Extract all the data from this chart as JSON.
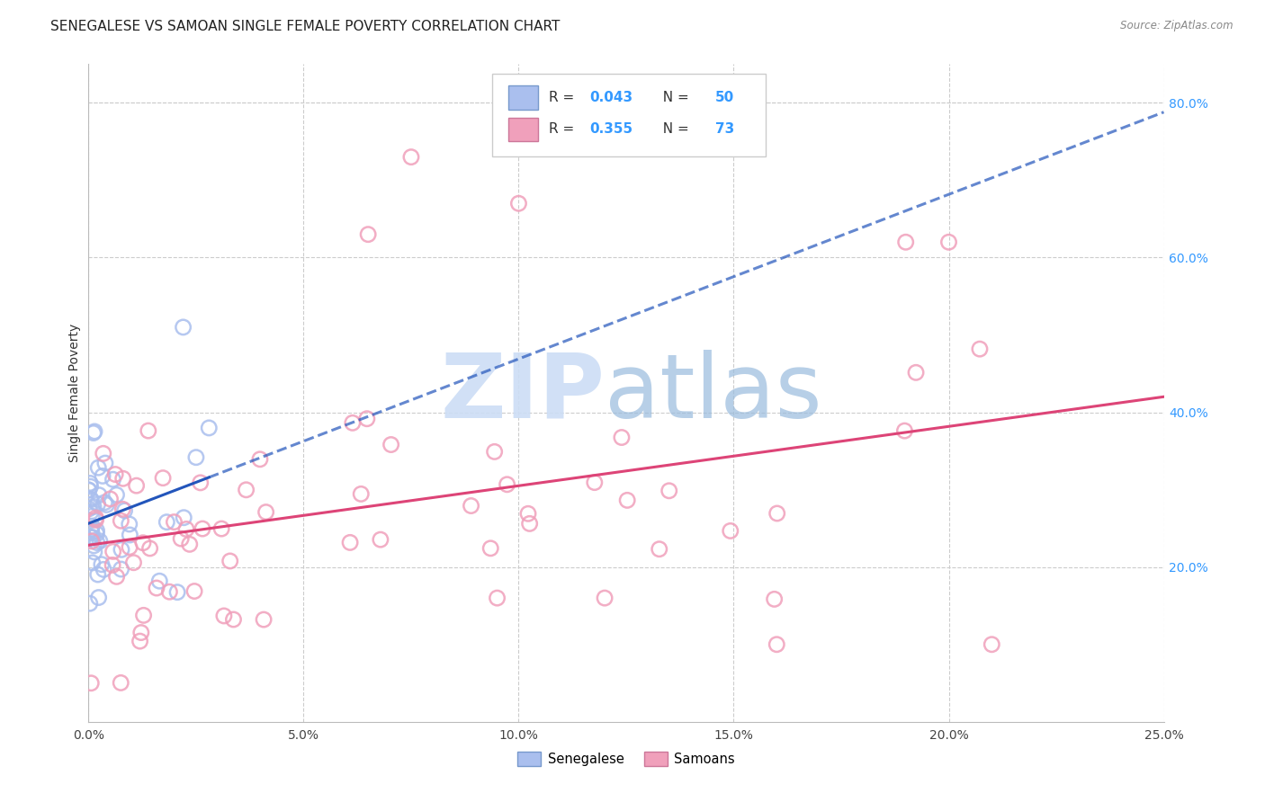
{
  "title": "SENEGALESE VS SAMOAN SINGLE FEMALE POVERTY CORRELATION CHART",
  "source": "Source: ZipAtlas.com",
  "ylabel": "Single Female Poverty",
  "xlim": [
    0.0,
    0.25
  ],
  "ylim": [
    0.0,
    0.85
  ],
  "xtick_labels": [
    "0.0%",
    "5.0%",
    "10.0%",
    "15.0%",
    "20.0%",
    "25.0%"
  ],
  "xtick_vals": [
    0.0,
    0.05,
    0.1,
    0.15,
    0.2,
    0.25
  ],
  "ytick_labels": [
    "20.0%",
    "40.0%",
    "60.0%",
    "80.0%"
  ],
  "ytick_vals": [
    0.2,
    0.4,
    0.6,
    0.8
  ],
  "background_color": "#ffffff",
  "grid_color": "#cccccc",
  "title_fontsize": 11,
  "axis_label_fontsize": 10,
  "tick_fontsize": 10,
  "right_ytick_color": "#3399ff",
  "senegalese_dot_color": "#aabfee",
  "samoan_dot_color": "#f0a0bb",
  "senegalese_line_color": "#2255bb",
  "samoan_line_color": "#dd4477",
  "sen_R": 0.043,
  "sen_N": 50,
  "sam_R": 0.355,
  "sam_N": 73,
  "watermark_zip_color": "#ccddf5",
  "watermark_atlas_color": "#99bbdd"
}
